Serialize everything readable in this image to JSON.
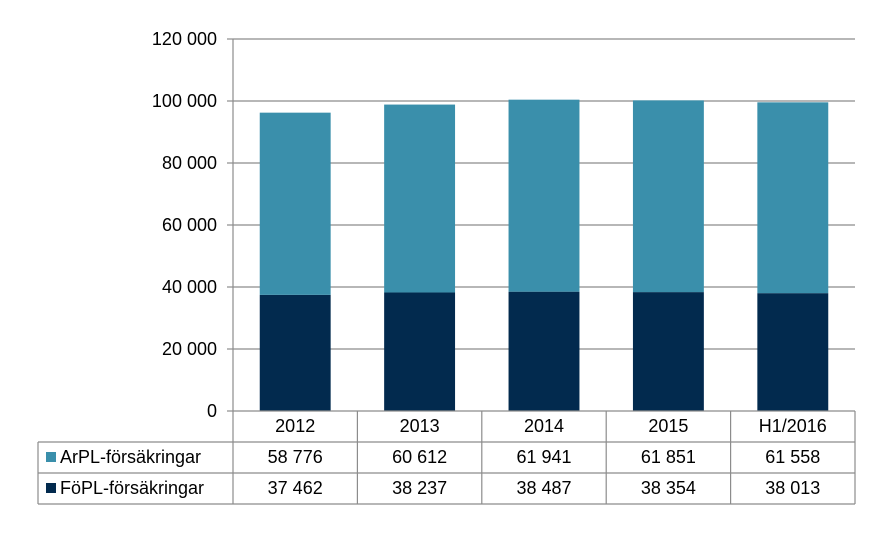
{
  "chart_data": {
    "type": "bar",
    "stacked": true,
    "categories": [
      "2012",
      "2013",
      "2014",
      "2015",
      "H1/2016"
    ],
    "series": [
      {
        "name": "FöPL-försäkringar",
        "values": [
          37462,
          38237,
          38487,
          38354,
          38013
        ],
        "color": "#022a4e"
      },
      {
        "name": "ArPL-försäkringar",
        "values": [
          58776,
          60612,
          61941,
          61851,
          61558
        ],
        "color": "#3a8fab"
      }
    ],
    "ylim": [
      0,
      120000
    ],
    "yticks": [
      0,
      20000,
      40000,
      60000,
      80000,
      100000,
      120000
    ],
    "ytick_labels": [
      "0",
      "20 000",
      "40 000",
      "60 000",
      "80 000",
      "100 000",
      "120 000"
    ],
    "grid": true,
    "data_table": {
      "rows": [
        {
          "label": "ArPL-försäkringar",
          "cells": [
            "58 776",
            "60 612",
            "61 941",
            "61 851",
            "61 558"
          ],
          "color": "#3a8fab"
        },
        {
          "label": "FöPL-försäkringar",
          "cells": [
            "37 462",
            "38 237",
            "38 487",
            "38 354",
            "38 013"
          ],
          "color": "#022a4e"
        }
      ]
    }
  }
}
